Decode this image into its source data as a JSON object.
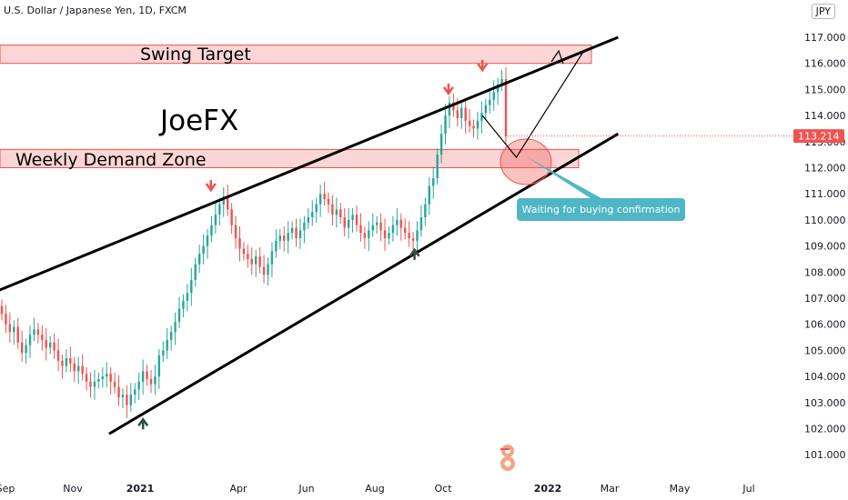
{
  "header": {
    "title": "U.S. Dollar / Japanese Yen, 1D, FXCM",
    "currency": "JPY"
  },
  "current_price": "113.214",
  "annotations": {
    "swing_target": "Swing Target",
    "demand_zone": "Weekly Demand Zone",
    "watermark": "JoeFX",
    "callout": "Waiting for buying confirmation"
  },
  "colors": {
    "up_candle": "#26a69a",
    "down_candle": "#ef5350",
    "zone_fill": "#fcd6d6",
    "zone_border": "#ef5350",
    "trendline": "#000000",
    "callout_bg": "#4fb6c6",
    "price_tag": "#ef5350",
    "top_arrow": "#ef5350",
    "bottom_arrow": "#2f4f3f"
  },
  "chart_data": {
    "type": "candlestick",
    "title": "U.S. Dollar / Japanese Yen, 1D, FXCM",
    "y_ticks": [
      "117.000",
      "116.000",
      "115.000",
      "114.000",
      "113.000",
      "112.000",
      "111.000",
      "110.000",
      "109.000",
      "108.000",
      "107.000",
      "106.000",
      "105.000",
      "104.000",
      "103.000",
      "102.000",
      "101.000"
    ],
    "x_ticks": [
      {
        "label": "Sep",
        "bold": false
      },
      {
        "label": "Nov",
        "bold": false
      },
      {
        "label": "2021",
        "bold": true
      },
      {
        "label": "Apr",
        "bold": false
      },
      {
        "label": "Jun",
        "bold": false
      },
      {
        "label": "Aug",
        "bold": false
      },
      {
        "label": "Oct",
        "bold": false
      },
      {
        "label": "2022",
        "bold": true
      },
      {
        "label": "Mar",
        "bold": false
      },
      {
        "label": "May",
        "bold": false
      },
      {
        "label": "Jul",
        "bold": false
      }
    ],
    "zones": [
      {
        "name": "Swing Target",
        "from": 116.0,
        "to": 116.7
      },
      {
        "name": "Weekly Demand Zone",
        "from": 112.0,
        "to": 112.7
      }
    ],
    "trendlines": [
      {
        "name": "upper",
        "from": {
          "date": "2020-08",
          "price": 106.9
        },
        "to": {
          "date": "2022-03",
          "price": 117.0
        }
      },
      {
        "name": "lower",
        "from": {
          "date": "2020-12",
          "price": 101.8
        },
        "to": {
          "date": "2022-03",
          "price": 113.3
        }
      }
    ],
    "touch_points": [
      {
        "type": "top",
        "date": "2021-03",
        "price": 110.9
      },
      {
        "type": "top",
        "date": "2021-10",
        "price": 114.6
      },
      {
        "type": "top",
        "date": "2021-11",
        "price": 115.5
      },
      {
        "type": "bottom",
        "date": "2021-01",
        "price": 102.6
      },
      {
        "type": "bottom",
        "date": "2021-09",
        "price": 109.1
      }
    ],
    "projection": [
      {
        "date": "2021-11",
        "price": 114.0
      },
      {
        "date": "2021-12",
        "price": 112.4
      },
      {
        "date": "2022-02",
        "price": 116.5
      }
    ],
    "series": [
      {
        "close": [
          106.4,
          106.0,
          105.7,
          105.9,
          105.3,
          104.9,
          105.2,
          105.6,
          105.8,
          105.6,
          105.4,
          105.1,
          105.3,
          105.0,
          104.6,
          104.4,
          104.7,
          104.5,
          104.2,
          104.4,
          104.1,
          103.8,
          103.6,
          103.8,
          103.9,
          104.0,
          104.1,
          103.8,
          103.6,
          103.2,
          103.3,
          102.9,
          103.3,
          103.5,
          103.8,
          104.2,
          103.9,
          103.7,
          104.0,
          104.8,
          105.0,
          105.4,
          105.7,
          106.1,
          106.6,
          106.9,
          107.2,
          107.7,
          108.3,
          108.7,
          109.0,
          109.4,
          109.8,
          110.2,
          110.6,
          110.9,
          110.4,
          109.8,
          109.3,
          108.9,
          108.7,
          108.5,
          108.3,
          108.6,
          108.2,
          107.9,
          108.3,
          108.8,
          109.2,
          109.4,
          109.2,
          109.5,
          109.7,
          109.3,
          109.6,
          109.9,
          110.1,
          110.3,
          110.6,
          111.0,
          110.8,
          110.6,
          110.2,
          110.4,
          110.1,
          109.7,
          110.0,
          110.2,
          109.8,
          109.5,
          109.3,
          109.6,
          109.8,
          109.9,
          109.6,
          109.3,
          109.5,
          109.8,
          110.0,
          109.7,
          109.5,
          109.3,
          109.2,
          109.6,
          110.1,
          110.6,
          111.3,
          111.6,
          112.5,
          113.3,
          114.0,
          114.5,
          114.2,
          113.9,
          114.3,
          113.8,
          113.6,
          113.5,
          113.8,
          114.1,
          114.4,
          114.6,
          114.9,
          115.2,
          115.4,
          113.2
        ]
      }
    ]
  }
}
